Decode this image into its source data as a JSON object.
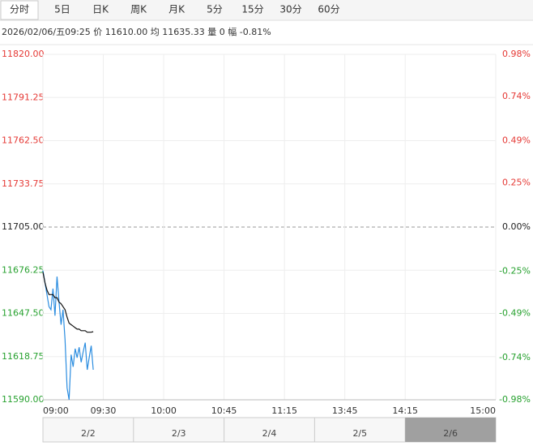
{
  "tabs": [
    "分时",
    "5日",
    "日K",
    "周K",
    "月K",
    "5分",
    "15分",
    "30分",
    "60分"
  ],
  "info": "2026/02/06/五09:25 价 11610.00 均 11635.33 量 0 幅 -0.81%",
  "chart_data": {
    "type": "line",
    "x": [
      0,
      1,
      2,
      3,
      4,
      5,
      6,
      7,
      8,
      9,
      10,
      11,
      12,
      13,
      14,
      15,
      16,
      17,
      18,
      19,
      20,
      21,
      22,
      23,
      24,
      25
    ],
    "series": [
      {
        "color": "#2b8de0",
        "values": [
          11676,
          11668,
          11660,
          11652,
          11650,
          11664,
          11646,
          11672,
          11655,
          11640,
          11650,
          11630,
          11598,
          11590,
          11620,
          11612,
          11624,
          11618,
          11625,
          11615,
          11622,
          11628,
          11610,
          11618,
          11626,
          11610
        ]
      },
      {
        "color": "#111111",
        "values": [
          11675,
          11668,
          11663,
          11660,
          11660,
          11660,
          11658,
          11658,
          11655,
          11654,
          11652,
          11650,
          11645,
          11641,
          11640,
          11639,
          11638,
          11637,
          11637,
          11636,
          11636,
          11636,
          11635,
          11635,
          11635,
          11635.33
        ]
      }
    ],
    "xlim": [
      0,
      225
    ],
    "xticks": [
      {
        "value": 0,
        "label": "09:00"
      },
      {
        "value": 30,
        "label": "09:30"
      },
      {
        "value": 60,
        "label": "10:00"
      },
      {
        "value": 90,
        "label": "10:45"
      },
      {
        "value": 120,
        "label": "11:15"
      },
      {
        "value": 150,
        "label": "13:45"
      },
      {
        "value": 180,
        "label": "14:15"
      },
      {
        "value": 225,
        "label": "15:00"
      }
    ],
    "ylim": [
      11590,
      11820
    ],
    "yticks": [
      {
        "value": 11820,
        "label": "11820.00"
      },
      11791.25,
      {
        "value": 11762.5,
        "label": "11762.50"
      },
      11733.75,
      {
        "value": 11705,
        "label": "11705.00"
      },
      11676.25,
      {
        "value": 11647.5,
        "label": "11647.50"
      },
      11618.75,
      {
        "value": 11590,
        "label": "11590.00"
      }
    ],
    "y2lim": [
      -0.98,
      0.98
    ],
    "y2ticks": [
      {
        "value": 0.98,
        "label": "0.98%"
      },
      {
        "value": 0.74,
        "label": "0.74%"
      },
      {
        "value": 0.49,
        "label": "0.49%"
      },
      {
        "value": 0.25,
        "label": "0.25%"
      },
      {
        "value": 0,
        "label": "0.00%"
      },
      {
        "value": -0.25,
        "label": "-0.25%"
      },
      {
        "value": -0.49,
        "label": "-0.49%"
      },
      {
        "value": -0.74,
        "label": "-0.74%"
      },
      {
        "value": -0.98,
        "label": "-0.98%"
      }
    ],
    "grid": true,
    "navigator_dates": [
      "2/2",
      "2/3",
      "2/4",
      "2/5",
      "2/6"
    ]
  }
}
